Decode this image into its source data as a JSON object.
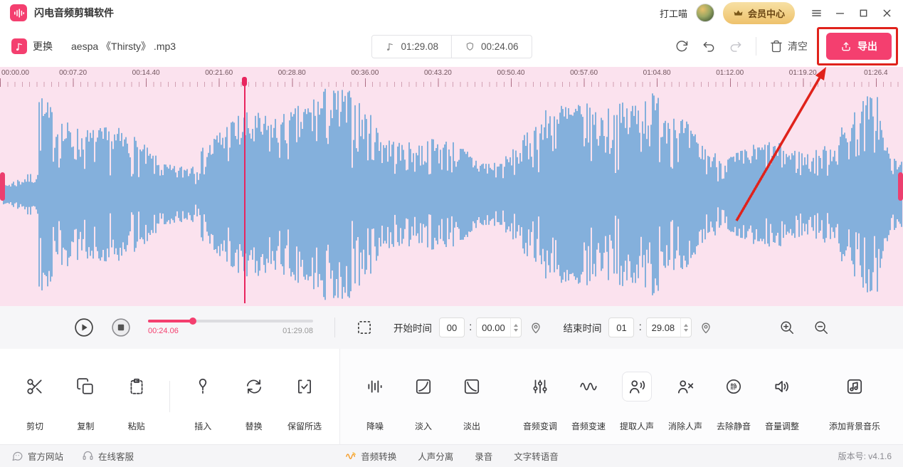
{
  "colors": {
    "accent_pink": "#F43F6F",
    "waveform_blue": "#5C9FD6",
    "waveform_bg": "#FBE2EE",
    "annotation_red": "#E0221B",
    "member_gold": "#EEC26C"
  },
  "titlebar": {
    "app_title": "闪电音频剪辑软件",
    "username": "打工喵",
    "member_center_label": "会员中心"
  },
  "toolbar": {
    "change_label": "更换",
    "filename": "aespa 《Thirsty》 .mp3",
    "total_duration": "01:29.08",
    "selection_duration": "00:24.06",
    "clear_label": "清空",
    "export_label": "导出"
  },
  "timeline": {
    "ruler_labels": [
      "00:00.00",
      "00:07.20",
      "00:14.40",
      "00:21.60",
      "00:28.80",
      "00:36.00",
      "00:43.20",
      "00:50.40",
      "00:57.60",
      "01:04.80",
      "01:12.00",
      "01:19.20",
      "01:26.4"
    ],
    "playhead_pct": 27
  },
  "playback": {
    "current_time": "00:24.06",
    "total_time": "01:29.08",
    "progress_pct": 27,
    "start_label": "开始时间",
    "start_minutes": "00",
    "start_seconds": "00.00",
    "end_label": "结束时间",
    "end_minutes": "01",
    "end_seconds": "29.08"
  },
  "tools": {
    "left": [
      {
        "label": "剪切"
      },
      {
        "label": "复制"
      },
      {
        "label": "粘贴"
      },
      {
        "label": "插入"
      },
      {
        "label": "替换"
      },
      {
        "label": "保留所选"
      }
    ],
    "right": [
      {
        "label": "降噪"
      },
      {
        "label": "淡入"
      },
      {
        "label": "淡出"
      },
      {
        "label": "音频变调"
      },
      {
        "label": "音频变速"
      },
      {
        "label": "提取人声"
      },
      {
        "label": "消除人声"
      },
      {
        "label": "去除静音"
      },
      {
        "label": "音量调整"
      },
      {
        "label": "添加背景音乐"
      }
    ]
  },
  "footer": {
    "official_site": "官方网站",
    "support": "在线客服",
    "audio_convert": "音频转换",
    "vocal_separation": "人声分离",
    "record": "录音",
    "tts": "文字转语音",
    "version": "版本号: v4.1.6"
  }
}
